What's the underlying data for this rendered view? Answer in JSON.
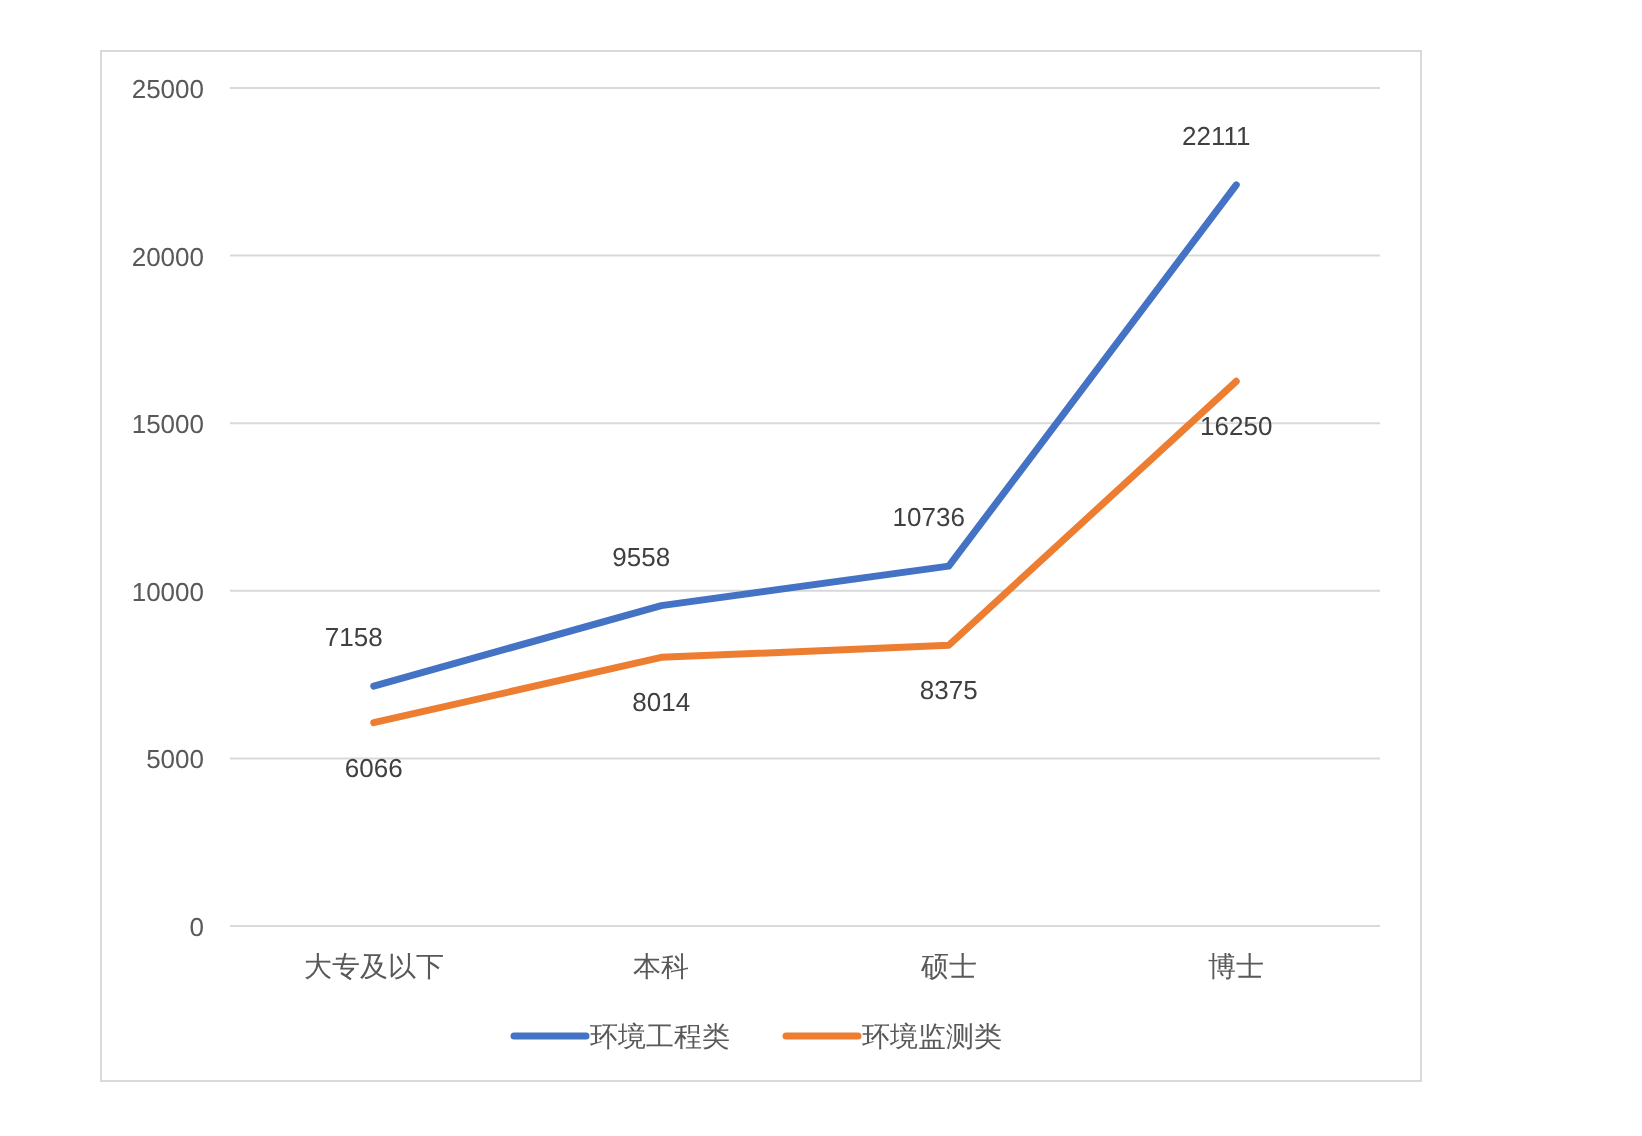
{
  "chart_data": {
    "type": "line",
    "categories": [
      "大专及以下",
      "本科",
      "硕士",
      "博士"
    ],
    "series": [
      {
        "name": "环境工程类",
        "color": "#4472c4",
        "values": [
          7158,
          9558,
          10736,
          22111
        ]
      },
      {
        "name": "环境监测类",
        "color": "#ed7d31",
        "values": [
          6066,
          8014,
          8375,
          16250
        ]
      }
    ],
    "ylim": [
      0,
      25000
    ],
    "yticks": [
      0,
      5000,
      10000,
      15000,
      20000,
      25000
    ],
    "grid": "y",
    "legend": "bottom",
    "data_labels": true,
    "line_style": "solid"
  }
}
